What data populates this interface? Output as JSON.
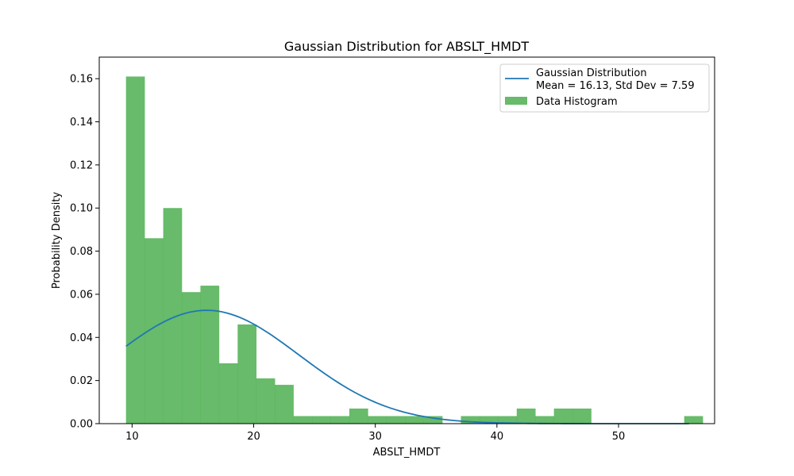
{
  "chart_data": {
    "type": "bar",
    "title": "Gaussian Distribution for ABSLT_HMDT",
    "xlabel": "ABSLT_HMDT",
    "ylabel": "Probability Density",
    "xlim": [
      7.3,
      57.9
    ],
    "ylim": [
      0,
      0.17
    ],
    "xticks": [
      10,
      20,
      30,
      40,
      50
    ],
    "xtick_labels": [
      "10",
      "20",
      "30",
      "40",
      "50"
    ],
    "yticks": [
      0,
      0.02,
      0.04,
      0.06,
      0.08,
      0.1,
      0.12,
      0.14,
      0.16
    ],
    "ytick_labels": [
      "0.00",
      "0.02",
      "0.04",
      "0.06",
      "0.08",
      "0.10",
      "0.12",
      "0.14",
      "0.16"
    ],
    "grid": false,
    "legend_position": "top-right",
    "histogram": {
      "name": "Data Histogram",
      "color": "#4caf50",
      "bin_start": 9.5,
      "bin_width": 1.53,
      "densities": [
        0.161,
        0.086,
        0.1,
        0.061,
        0.064,
        0.028,
        0.046,
        0.021,
        0.018,
        0.0035,
        0.0035,
        0.0035,
        0.007,
        0.0035,
        0.0035,
        0.0035,
        0.0035,
        0,
        0.0035,
        0.0035,
        0.0035,
        0.007,
        0.0035,
        0.007,
        0.007,
        0,
        0,
        0,
        0,
        0,
        0.0035
      ]
    },
    "gaussian": {
      "name": "Gaussian Distribution",
      "name_line2": "Mean = 16.13, Std Dev = 7.59",
      "color": "#1f77b4",
      "mean": 16.13,
      "std": 7.59,
      "x_range": [
        9.5,
        55.8
      ]
    }
  }
}
